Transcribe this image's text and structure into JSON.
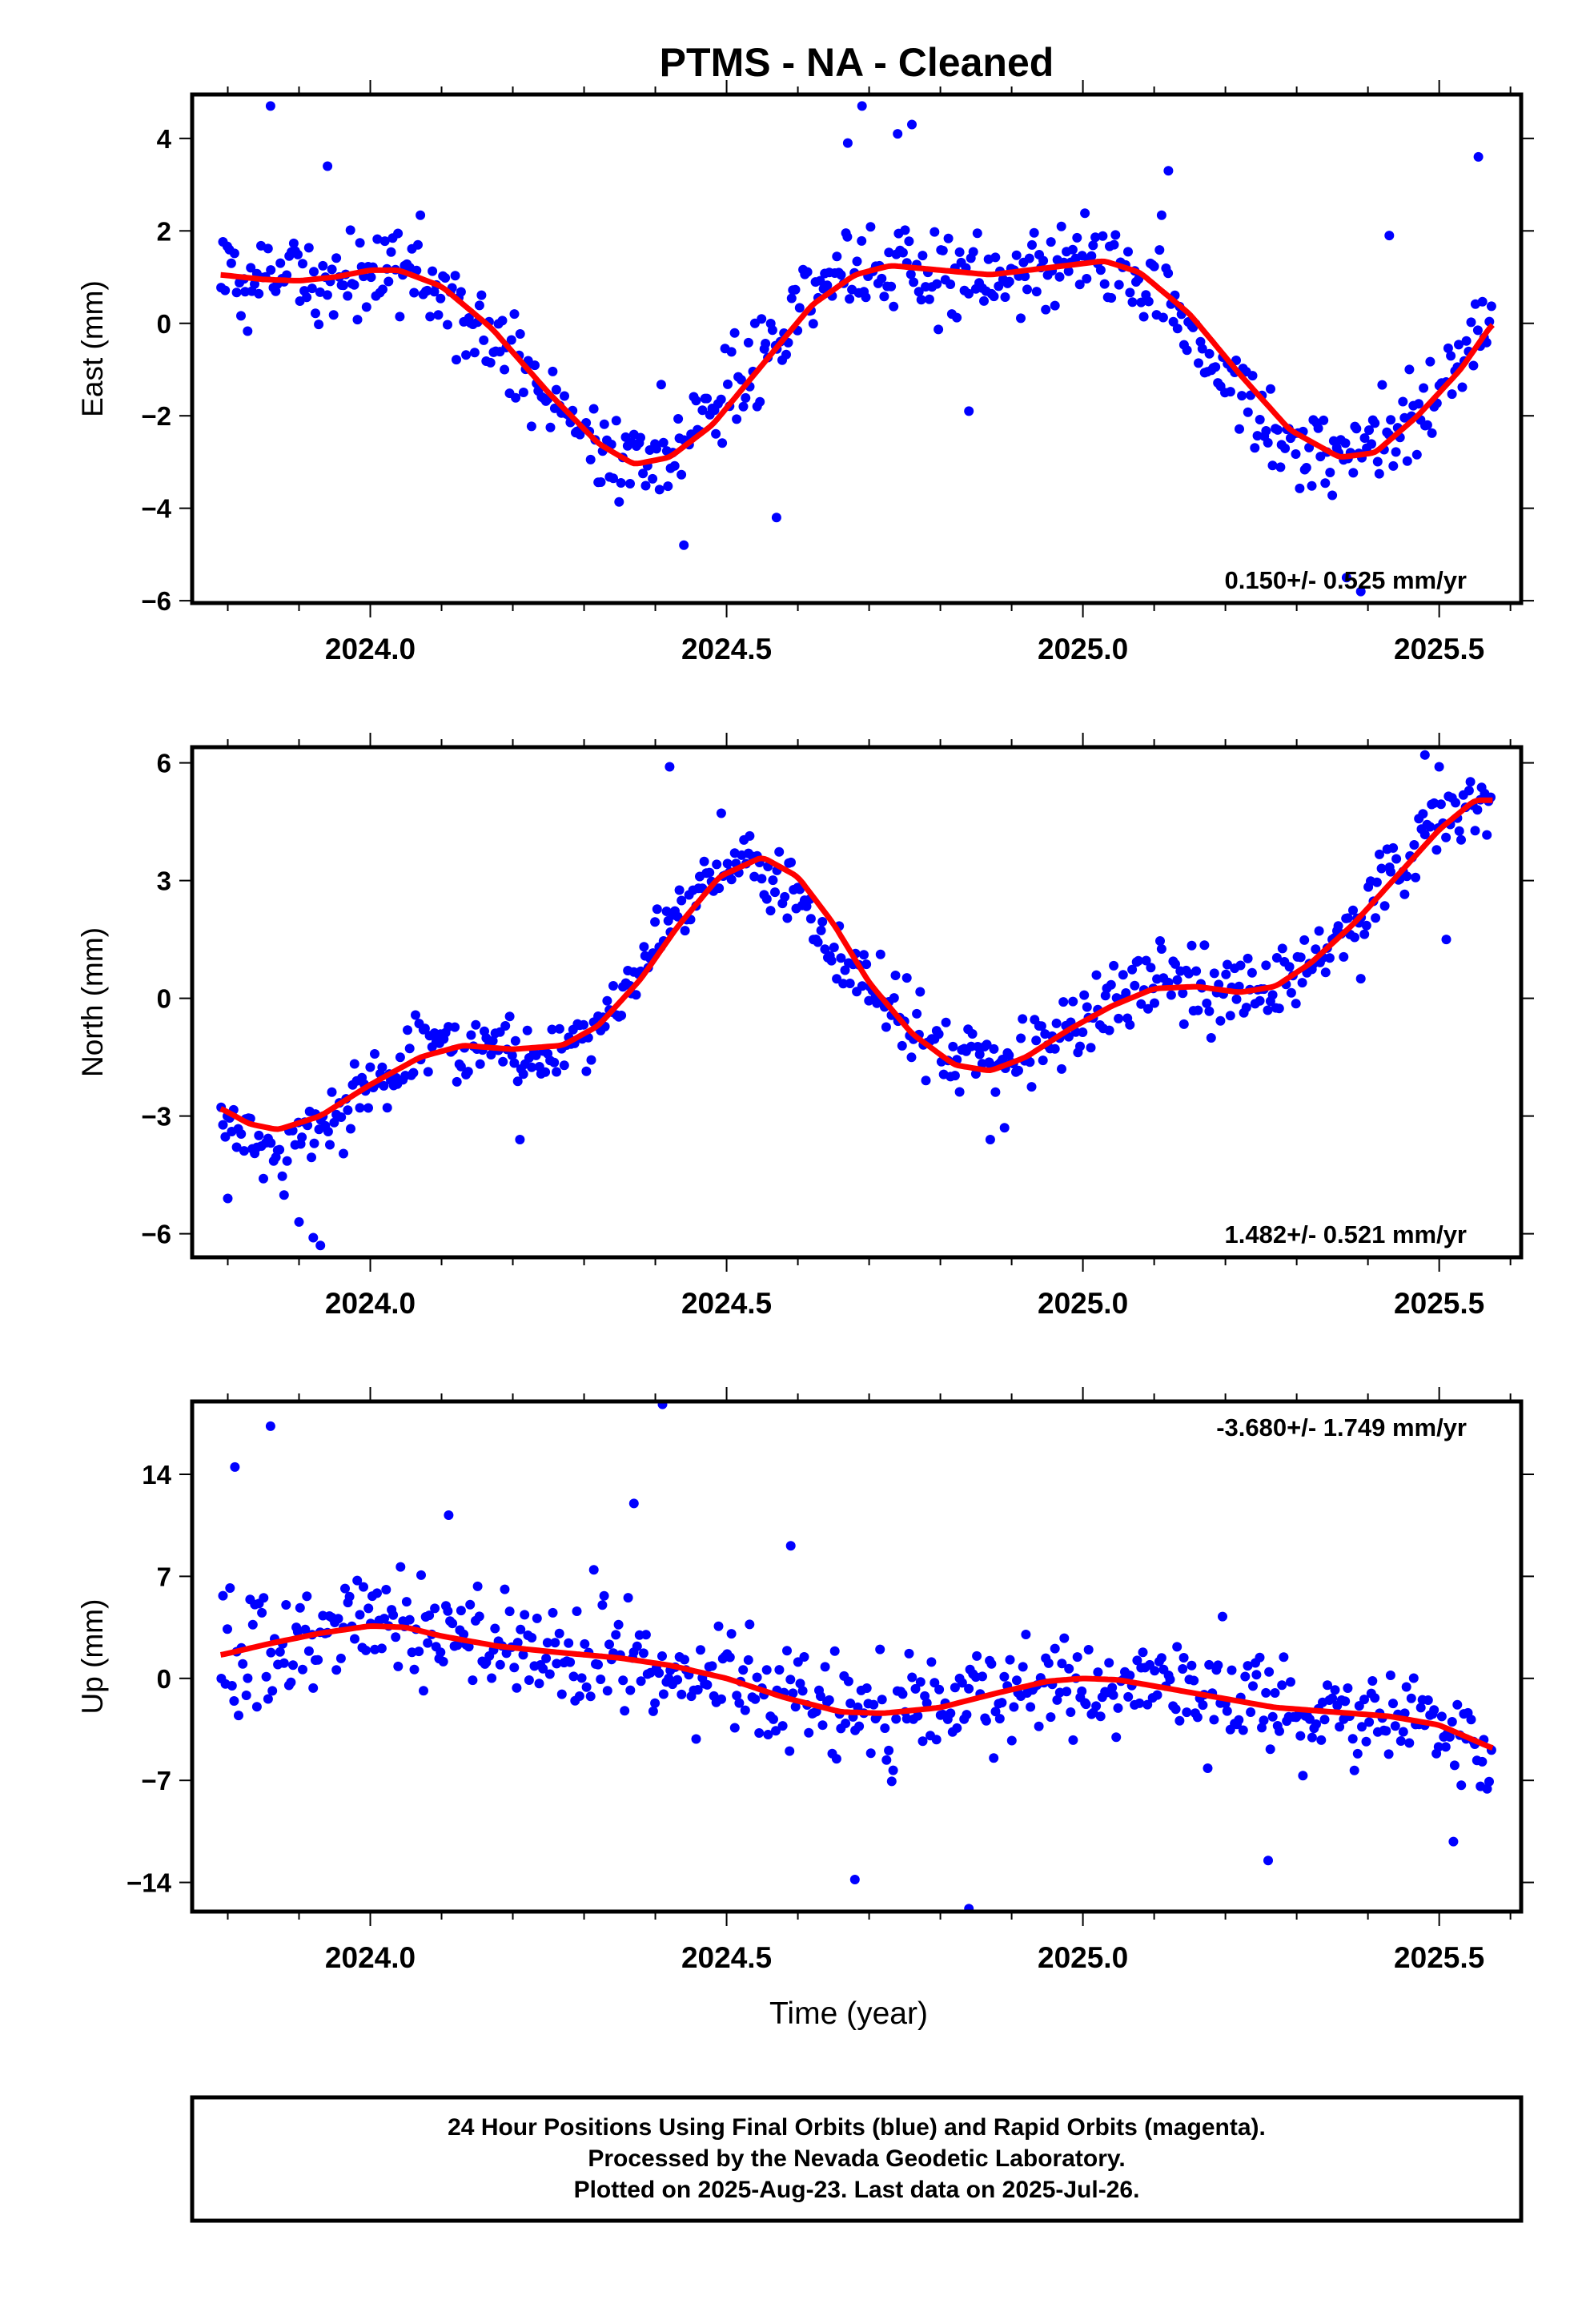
{
  "title": "PTMS  - NA - Cleaned",
  "footer": {
    "line1": "24 Hour Positions Using Final Orbits (blue) and Rapid Orbits (magenta).",
    "line2": "Processed by the Nevada Geodetic Laboratory.",
    "line3": "Plotted on 2025-Aug-23. Last data on 2025-Jul-26."
  },
  "colors": {
    "data": "#0000ff",
    "model": "#ff0000",
    "frame": "#000000"
  },
  "chart_data": [
    {
      "type": "scatter",
      "ylabel": "East (mm)",
      "xlabel": "",
      "xlim": [
        2023.75,
        2025.615
      ],
      "ylim": [
        -6.05,
        4.95
      ],
      "xticks": [
        "2024.0",
        "2024.5",
        "2025.0",
        "2025.5"
      ],
      "yticks": [
        "4",
        "2",
        "0",
        "−2",
        "−4",
        "−6"
      ],
      "rate_label": "0.150+/- 0.525 mm/yr",
      "rate_position": "bottom-right",
      "series": [
        {
          "role": "daily positions (blue)",
          "trend": [
            [
              2023.79,
              1.0
            ],
            [
              2023.9,
              0.9
            ],
            [
              2024.0,
              1.1
            ],
            [
              2024.08,
              1.0
            ],
            [
              2024.2,
              -0.8
            ],
            [
              2024.3,
              -2.5
            ],
            [
              2024.37,
              -3.0
            ],
            [
              2024.45,
              -2.5
            ],
            [
              2024.55,
              -0.8
            ],
            [
              2024.65,
              0.9
            ],
            [
              2024.75,
              1.3
            ],
            [
              2024.85,
              1.1
            ],
            [
              2024.95,
              1.2
            ],
            [
              2025.05,
              1.3
            ],
            [
              2025.12,
              0.6
            ],
            [
              2025.2,
              -1.2
            ],
            [
              2025.3,
              -2.7
            ],
            [
              2025.38,
              -2.9
            ],
            [
              2025.47,
              -1.9
            ],
            [
              2025.575,
              0.1
            ]
          ],
          "noise_mm": 0.95,
          "outliers": [
            [
              2023.86,
              4.7
            ],
            [
              2024.69,
              4.7
            ],
            [
              2024.76,
              4.3
            ],
            [
              2024.67,
              3.9
            ],
            [
              2023.94,
              3.4
            ],
            [
              2024.57,
              -4.2
            ],
            [
              2024.44,
              -4.8
            ],
            [
              2025.37,
              -5.5
            ],
            [
              2025.39,
              -5.8
            ],
            [
              2024.84,
              -1.9
            ],
            [
              2025.43,
              1.9
            ],
            [
              2025.12,
              3.3
            ],
            [
              2025.555,
              3.6
            ],
            [
              2024.74,
              4.1
            ]
          ]
        },
        {
          "role": "model fit (red)",
          "points": [
            [
              2023.79,
              1.05
            ],
            [
              2023.85,
              0.95
            ],
            [
              2023.9,
              0.92
            ],
            [
              2023.95,
              1.0
            ],
            [
              2024.0,
              1.15
            ],
            [
              2024.04,
              1.15
            ],
            [
              2024.1,
              0.8
            ],
            [
              2024.17,
              -0.1
            ],
            [
              2024.25,
              -1.5
            ],
            [
              2024.32,
              -2.6
            ],
            [
              2024.37,
              -3.05
            ],
            [
              2024.42,
              -2.9
            ],
            [
              2024.48,
              -2.2
            ],
            [
              2024.55,
              -0.9
            ],
            [
              2024.62,
              0.4
            ],
            [
              2024.68,
              1.05
            ],
            [
              2024.73,
              1.25
            ],
            [
              2024.8,
              1.15
            ],
            [
              2024.87,
              1.05
            ],
            [
              2024.95,
              1.2
            ],
            [
              2025.03,
              1.35
            ],
            [
              2025.08,
              1.1
            ],
            [
              2025.15,
              0.2
            ],
            [
              2025.22,
              -1.1
            ],
            [
              2025.29,
              -2.3
            ],
            [
              2025.36,
              -2.9
            ],
            [
              2025.41,
              -2.8
            ],
            [
              2025.47,
              -2.0
            ],
            [
              2025.53,
              -1.0
            ],
            [
              2025.575,
              0.0
            ]
          ]
        }
      ]
    },
    {
      "type": "scatter",
      "ylabel": "North (mm)",
      "xlabel": "",
      "xlim": [
        2023.75,
        2025.615
      ],
      "ylim": [
        -6.6,
        6.4
      ],
      "xticks": [
        "2024.0",
        "2024.5",
        "2025.0",
        "2025.5"
      ],
      "yticks": [
        "6",
        "3",
        "0",
        "−3",
        "−6"
      ],
      "rate_label": "1.482+/- 0.521 mm/yr",
      "rate_position": "bottom-right",
      "series": [
        {
          "role": "daily positions (blue)",
          "trend": [
            [
              2023.79,
              -3.1
            ],
            [
              2023.85,
              -3.8
            ],
            [
              2023.95,
              -3.2
            ],
            [
              2024.05,
              -1.5
            ],
            [
              2024.15,
              -1.2
            ],
            [
              2024.25,
              -1.5
            ],
            [
              2024.35,
              -0.3
            ],
            [
              2024.45,
              2.8
            ],
            [
              2024.52,
              3.6
            ],
            [
              2024.6,
              2.6
            ],
            [
              2024.7,
              0.2
            ],
            [
              2024.8,
              -1.4
            ],
            [
              2024.88,
              -1.8
            ],
            [
              2024.95,
              -1.0
            ],
            [
              2025.05,
              -0.1
            ],
            [
              2025.12,
              0.7
            ],
            [
              2025.2,
              0.2
            ],
            [
              2025.28,
              0.3
            ],
            [
              2025.38,
              2.0
            ],
            [
              2025.5,
              4.5
            ],
            [
              2025.575,
              5.0
            ]
          ],
          "noise_mm": 0.85,
          "outliers": [
            [
              2023.9,
              -5.7
            ],
            [
              2023.92,
              -6.1
            ],
            [
              2023.93,
              -6.3
            ],
            [
              2023.8,
              -5.1
            ],
            [
              2024.42,
              5.9
            ],
            [
              2025.5,
              5.9
            ],
            [
              2025.48,
              6.2
            ],
            [
              2025.51,
              1.5
            ],
            [
              2024.87,
              -3.6
            ],
            [
              2024.89,
              -3.3
            ],
            [
              2024.21,
              -3.6
            ],
            [
              2025.39,
              0.5
            ]
          ]
        },
        {
          "role": "model fit (red)",
          "points": [
            [
              2023.79,
              -2.8
            ],
            [
              2023.83,
              -3.2
            ],
            [
              2023.87,
              -3.35
            ],
            [
              2023.93,
              -3.0
            ],
            [
              2024.0,
              -2.2
            ],
            [
              2024.07,
              -1.5
            ],
            [
              2024.13,
              -1.2
            ],
            [
              2024.2,
              -1.3
            ],
            [
              2024.27,
              -1.2
            ],
            [
              2024.32,
              -0.7
            ],
            [
              2024.38,
              0.5
            ],
            [
              2024.43,
              1.8
            ],
            [
              2024.49,
              3.1
            ],
            [
              2024.55,
              3.6
            ],
            [
              2024.6,
              3.1
            ],
            [
              2024.65,
              1.9
            ],
            [
              2024.7,
              0.4
            ],
            [
              2024.76,
              -0.9
            ],
            [
              2024.82,
              -1.7
            ],
            [
              2024.87,
              -1.85
            ],
            [
              2024.92,
              -1.5
            ],
            [
              2024.98,
              -0.8
            ],
            [
              2025.04,
              -0.2
            ],
            [
              2025.1,
              0.25
            ],
            [
              2025.16,
              0.3
            ],
            [
              2025.22,
              0.15
            ],
            [
              2025.27,
              0.3
            ],
            [
              2025.32,
              0.9
            ],
            [
              2025.38,
              1.9
            ],
            [
              2025.44,
              3.1
            ],
            [
              2025.5,
              4.3
            ],
            [
              2025.55,
              5.05
            ],
            [
              2025.575,
              5.05
            ]
          ]
        }
      ]
    },
    {
      "type": "scatter",
      "ylabel": "Up (mm)",
      "xlabel": "Time (year)",
      "xlim": [
        2023.75,
        2025.615
      ],
      "ylim": [
        -16.0,
        19.0
      ],
      "xticks": [
        "2024.0",
        "2024.5",
        "2025.0",
        "2025.5"
      ],
      "yticks": [
        "14",
        "7",
        "0",
        "−7",
        "−14"
      ],
      "rate_label": "-3.680+/- 1.749 mm/yr",
      "rate_position": "top-right",
      "series": [
        {
          "role": "daily positions (blue)",
          "trend": [
            [
              2023.79,
              1.5
            ],
            [
              2024.0,
              3.5
            ],
            [
              2024.1,
              2.5
            ],
            [
              2024.3,
              1.5
            ],
            [
              2024.45,
              0.5
            ],
            [
              2024.6,
              -1.5
            ],
            [
              2024.72,
              -2.5
            ],
            [
              2024.85,
              -1.5
            ],
            [
              2025.0,
              0.0
            ],
            [
              2025.15,
              -0.8
            ],
            [
              2025.3,
              -2.0
            ],
            [
              2025.45,
              -2.8
            ],
            [
              2025.575,
              -5.0
            ]
          ],
          "noise_mm": 3.6,
          "outliers": [
            [
              2024.41,
              18.8
            ],
            [
              2023.86,
              17.3
            ],
            [
              2023.81,
              14.5
            ],
            [
              2024.37,
              12.0
            ],
            [
              2024.84,
              -15.8
            ],
            [
              2024.68,
              -13.8
            ],
            [
              2025.26,
              -12.5
            ],
            [
              2024.11,
              11.2
            ],
            [
              2024.59,
              9.1
            ],
            [
              2025.52,
              -11.2
            ]
          ]
        },
        {
          "role": "model fit (red)",
          "points": [
            [
              2023.79,
              1.6
            ],
            [
              2023.86,
              2.4
            ],
            [
              2023.93,
              3.1
            ],
            [
              2024.0,
              3.6
            ],
            [
              2024.05,
              3.5
            ],
            [
              2024.1,
              2.9
            ],
            [
              2024.18,
              2.2
            ],
            [
              2024.26,
              1.8
            ],
            [
              2024.35,
              1.4
            ],
            [
              2024.42,
              0.9
            ],
            [
              2024.5,
              0.0
            ],
            [
              2024.58,
              -1.3
            ],
            [
              2024.66,
              -2.3
            ],
            [
              2024.72,
              -2.4
            ],
            [
              2024.8,
              -2.0
            ],
            [
              2024.88,
              -1.0
            ],
            [
              2024.95,
              -0.2
            ],
            [
              2025.0,
              0.0
            ],
            [
              2025.05,
              -0.1
            ],
            [
              2025.12,
              -0.7
            ],
            [
              2025.2,
              -1.4
            ],
            [
              2025.27,
              -2.0
            ],
            [
              2025.35,
              -2.3
            ],
            [
              2025.43,
              -2.6
            ],
            [
              2025.5,
              -3.2
            ],
            [
              2025.575,
              -4.8
            ]
          ]
        }
      ]
    }
  ]
}
